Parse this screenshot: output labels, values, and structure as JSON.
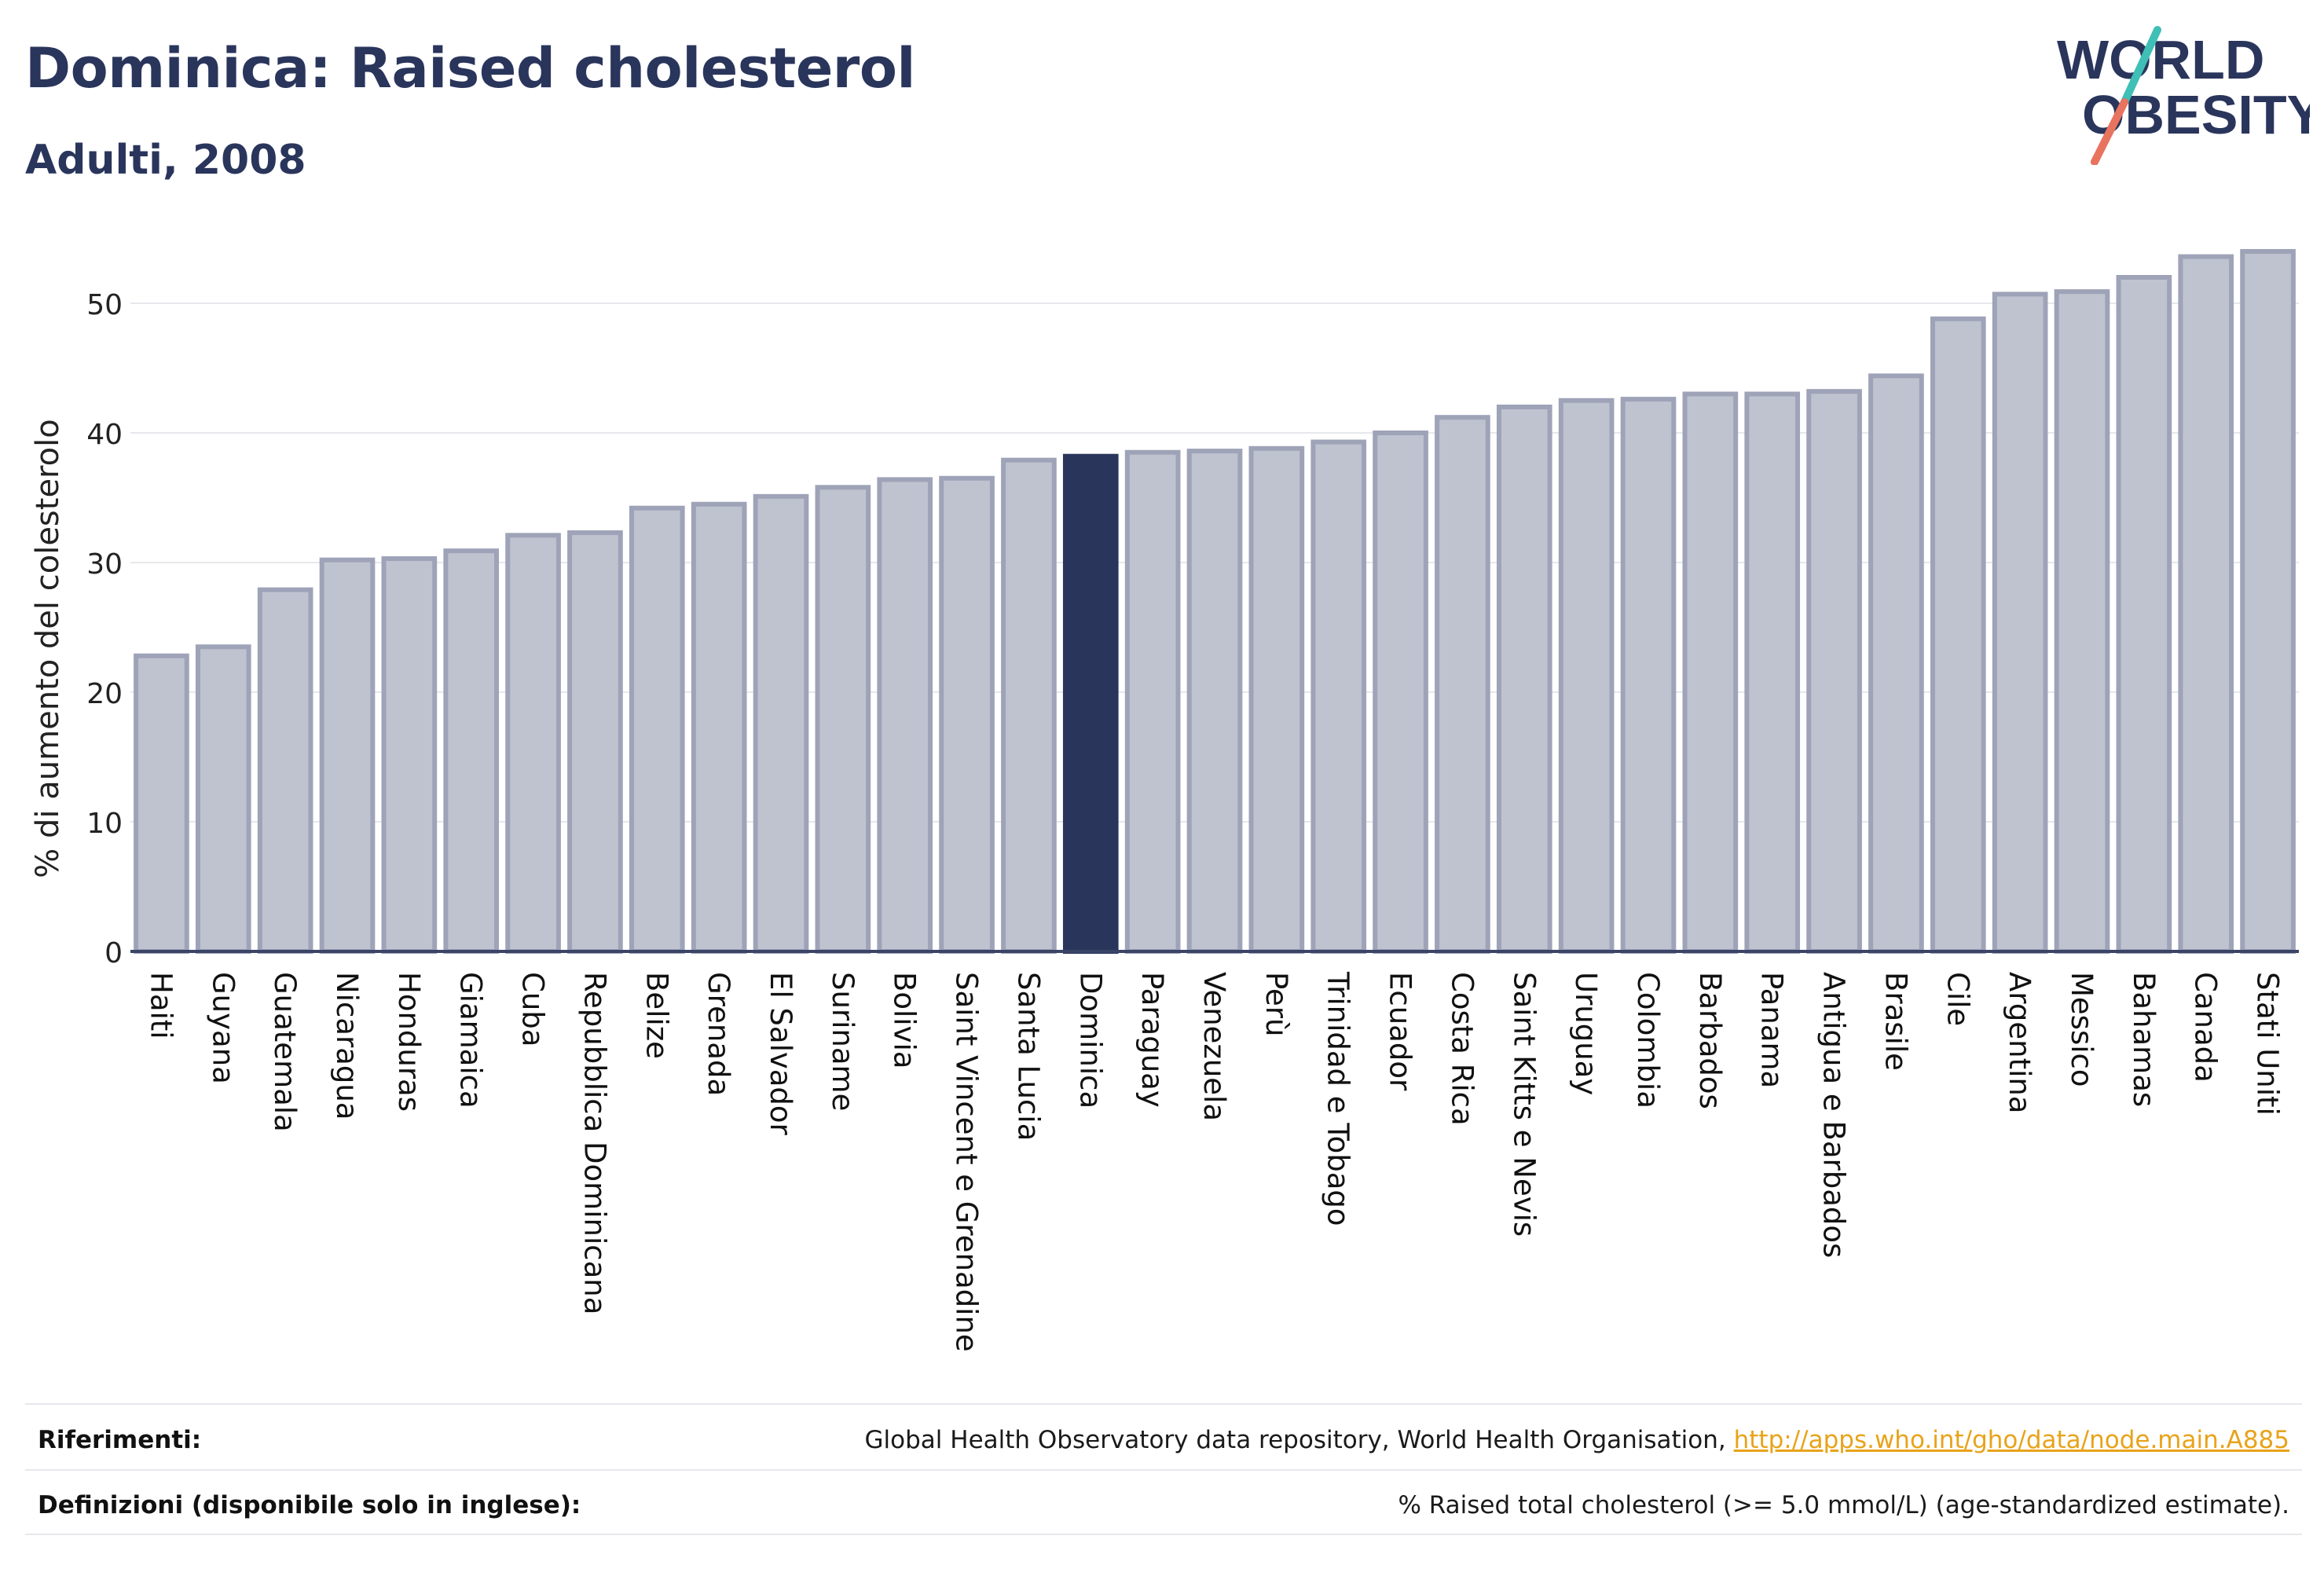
{
  "header": {
    "title": "Dominica: Raised cholesterol",
    "subtitle": "Adulti, 2008"
  },
  "logo": {
    "line1": "WORLD",
    "line2": "OBESITY"
  },
  "colors": {
    "bar": "#bfc3d0",
    "bar_border": "#9ea3b8",
    "highlight": "#2a355c",
    "text": "#2a355c",
    "grid": "#e6e8ec",
    "axis": "#3a4466",
    "link": "#e8a31a"
  },
  "chart_data": {
    "type": "bar",
    "title": "Dominica: Raised cholesterol",
    "subtitle": "Adulti, 2008",
    "xlabel": "",
    "ylabel": "% di aumento del colesterolo",
    "ylim": [
      0,
      55
    ],
    "yticks": [
      0,
      10,
      20,
      30,
      40,
      50
    ],
    "grid": true,
    "highlight": "Dominica",
    "categories": [
      "Haiti",
      "Guyana",
      "Guatemala",
      "Nicaragua",
      "Honduras",
      "Giamaica",
      "Cuba",
      "Repubblica Dominicana",
      "Belize",
      "Grenada",
      "El Salvador",
      "Suriname",
      "Bolivia",
      "Saint Vincent e Grenadine",
      "Santa Lucia",
      "Dominica",
      "Paraguay",
      "Venezuela",
      "Perù",
      "Trinidad e Tobago",
      "Ecuador",
      "Costa Rica",
      "Saint Kitts e Nevis",
      "Uruguay",
      "Colombia",
      "Barbados",
      "Panama",
      "Antigua e Barbados",
      "Brasile",
      "Cile",
      "Argentina",
      "Messico",
      "Bahamas",
      "Canada",
      "Stati Uniti"
    ],
    "values": [
      22.8,
      23.5,
      27.9,
      30.2,
      30.3,
      30.9,
      32.1,
      32.3,
      34.2,
      34.5,
      35.1,
      35.8,
      36.4,
      36.5,
      37.9,
      38.2,
      38.5,
      38.6,
      38.8,
      39.3,
      40.0,
      41.2,
      42.0,
      42.5,
      42.6,
      43.0,
      43.0,
      43.2,
      44.4,
      48.8,
      50.7,
      50.9,
      52.0,
      53.6,
      54.0
    ]
  },
  "footer": {
    "references_label": "Riferimenti:",
    "references_text": "Global Health Observatory data repository, World Health Organisation, ",
    "references_link": "http://apps.who.int/gho/data/node.main.A885",
    "definitions_label": "Definizioni (disponibile solo in inglese):",
    "definitions_text": "% Raised total cholesterol (>= 5.0 mmol/L) (age-standardized estimate)."
  }
}
